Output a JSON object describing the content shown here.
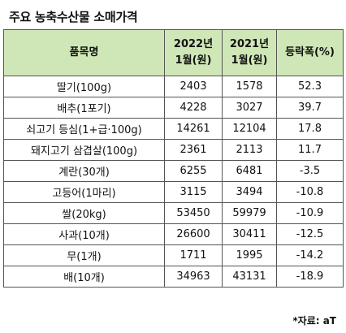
{
  "title": "주요 농축수산물 소매가격",
  "table": {
    "headers": {
      "item": "품목명",
      "y2022_line1": "2022년",
      "y2022_line2": "1월(원)",
      "y2021_line1": "2021년",
      "y2021_line2": "1월(원)",
      "change": "등락폭(%)"
    },
    "rows": [
      {
        "item": "딸기(100g)",
        "y2022": "2403",
        "y2021": "1578",
        "change": "52.3"
      },
      {
        "item": "배추(1포기)",
        "y2022": "4228",
        "y2021": "3027",
        "change": "39.7"
      },
      {
        "item": "쇠고기 등심(1+급·100g)",
        "y2022": "14261",
        "y2021": "12104",
        "change": "17.8"
      },
      {
        "item": "돼지고기 삼겹살(100g)",
        "y2022": "2361",
        "y2021": "2113",
        "change": "11.7"
      },
      {
        "item": "계란(30개)",
        "y2022": "6255",
        "y2021": "6481",
        "change": "-3.5"
      },
      {
        "item": "고등어(1마리)",
        "y2022": "3115",
        "y2021": "3494",
        "change": "-10.8"
      },
      {
        "item": "쌀(20kg)",
        "y2022": "53450",
        "y2021": "59979",
        "change": "-10.9"
      },
      {
        "item": "사과(10개)",
        "y2022": "26600",
        "y2021": "30411",
        "change": "-12.5"
      },
      {
        "item": "무(1개)",
        "y2022": "1711",
        "y2021": "1995",
        "change": "-14.2"
      },
      {
        "item": "배(10개)",
        "y2022": "34963",
        "y2021": "43131",
        "change": "-18.9"
      }
    ]
  },
  "source": "*자료: aT",
  "colors": {
    "header_bg": "#cfe7b6",
    "border": "#555555"
  }
}
